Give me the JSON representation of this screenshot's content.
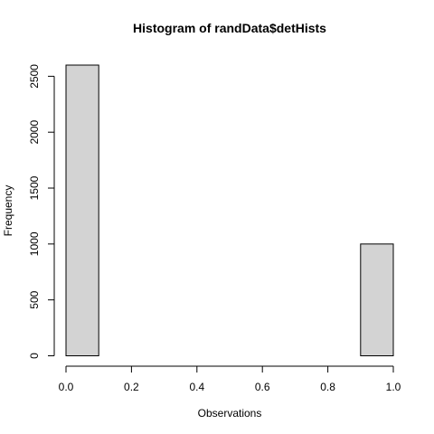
{
  "chart_data": {
    "type": "bar",
    "title": "Histogram of randData$detHists",
    "xlabel": "Observations",
    "ylabel": "Frequency",
    "bins": [
      {
        "x0": 0.0,
        "x1": 0.1,
        "value": 2600
      },
      {
        "x0": 0.1,
        "x1": 0.2,
        "value": 0
      },
      {
        "x0": 0.2,
        "x1": 0.3,
        "value": 0
      },
      {
        "x0": 0.3,
        "x1": 0.4,
        "value": 0
      },
      {
        "x0": 0.4,
        "x1": 0.5,
        "value": 0
      },
      {
        "x0": 0.5,
        "x1": 0.6,
        "value": 0
      },
      {
        "x0": 0.6,
        "x1": 0.7,
        "value": 0
      },
      {
        "x0": 0.7,
        "x1": 0.8,
        "value": 0
      },
      {
        "x0": 0.8,
        "x1": 0.9,
        "value": 0
      },
      {
        "x0": 0.9,
        "x1": 1.0,
        "value": 1000
      }
    ],
    "xticks": [
      "0.0",
      "0.2",
      "0.4",
      "0.6",
      "0.8",
      "1.0"
    ],
    "yticks": [
      "0",
      "500",
      "1000",
      "1500",
      "2000",
      "2500"
    ],
    "xlim": [
      0,
      1
    ],
    "ylim": [
      0,
      2600
    ],
    "grid": false,
    "legend": "none",
    "bar_fill": "#d3d3d3",
    "bar_stroke": "#000000"
  }
}
